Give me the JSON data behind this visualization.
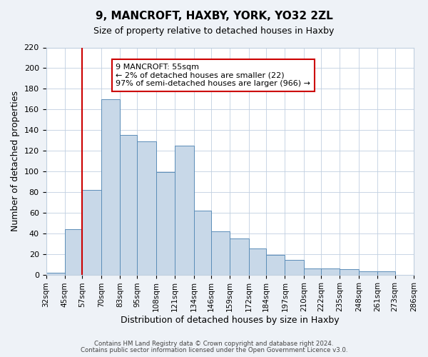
{
  "title": "9, MANCROFT, HAXBY, YORK, YO32 2ZL",
  "subtitle": "Size of property relative to detached houses in Haxby",
  "xlabel": "Distribution of detached houses by size in Haxby",
  "ylabel": "Number of detached properties",
  "bin_labels": [
    "32sqm",
    "45sqm",
    "57sqm",
    "70sqm",
    "83sqm",
    "95sqm",
    "108sqm",
    "121sqm",
    "134sqm",
    "146sqm",
    "159sqm",
    "172sqm",
    "184sqm",
    "197sqm",
    "210sqm",
    "222sqm",
    "235sqm",
    "248sqm",
    "261sqm",
    "273sqm",
    "286sqm"
  ],
  "bin_edges": [
    32,
    45,
    57,
    70,
    83,
    95,
    108,
    121,
    134,
    146,
    159,
    172,
    184,
    197,
    210,
    222,
    235,
    248,
    261,
    273,
    286
  ],
  "bar_heights": [
    2,
    44,
    82,
    170,
    135,
    129,
    99,
    125,
    62,
    42,
    35,
    25,
    19,
    14,
    6,
    6,
    5,
    3,
    3,
    0
  ],
  "bar_color": "#c8d8e8",
  "bar_edge_color": "#5b8db8",
  "vline_x": 57,
  "vline_color": "#cc0000",
  "ylim": [
    0,
    220
  ],
  "yticks": [
    0,
    20,
    40,
    60,
    80,
    100,
    120,
    140,
    160,
    180,
    200,
    220
  ],
  "annotation_box_text": "9 MANCROFT: 55sqm\n← 2% of detached houses are smaller (22)\n97% of semi-detached houses are larger (966) →",
  "footer_line1": "Contains HM Land Registry data © Crown copyright and database right 2024.",
  "footer_line2": "Contains public sector information licensed under the Open Government Licence v3.0.",
  "bg_color": "#eef2f7",
  "plot_bg_color": "#ffffff",
  "grid_color": "#c0cfe0"
}
